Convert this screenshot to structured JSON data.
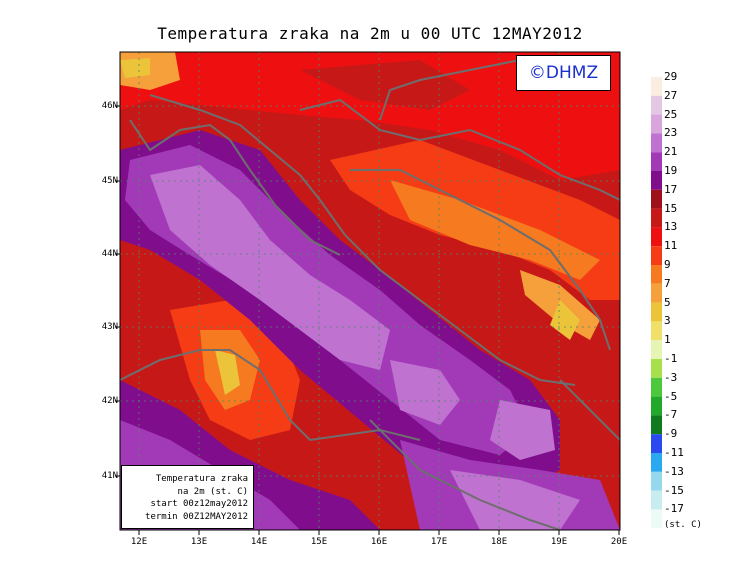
{
  "title": "Temperatura zraka na 2m u 00 UTC 12MAY2012",
  "copyright": "©DHMZ",
  "info_box": [
    "Temperatura zraka",
    "na 2m (st. C)",
    "start 00z12may2012",
    "termin 00Z12MAY2012"
  ],
  "y_ticks": [
    "46N",
    "45N",
    "44N",
    "43N",
    "42N",
    "41N"
  ],
  "x_ticks": [
    "12E",
    "13E",
    "14E",
    "15E",
    "16E",
    "17E",
    "18E",
    "19E",
    "20E"
  ],
  "legend": {
    "labels": [
      "29",
      "27",
      "25",
      "23",
      "21",
      "19",
      "17",
      "15",
      "13",
      "11",
      "9",
      "7",
      "5",
      "3",
      "1",
      "-1",
      "-3",
      "-5",
      "-7",
      "-9",
      "-11",
      "-13",
      "-15",
      "-17"
    ],
    "colors": [
      "#fbeee0",
      "#e3c8e3",
      "#d8a6dc",
      "#c072d0",
      "#a23ab8",
      "#800e8c",
      "#a0101a",
      "#c71818",
      "#ee1010",
      "#f53c14",
      "#f57a20",
      "#f5a03a",
      "#ecc43a",
      "#f0e06a",
      "#e6f5b4",
      "#a8e04c",
      "#4cc83c",
      "#22a82a",
      "#0f7a1e",
      "#2a4af0",
      "#2aa8f0",
      "#96d8ec",
      "#c8ecf0",
      "#ecfaf8"
    ],
    "unit": "(st. C)"
  }
}
